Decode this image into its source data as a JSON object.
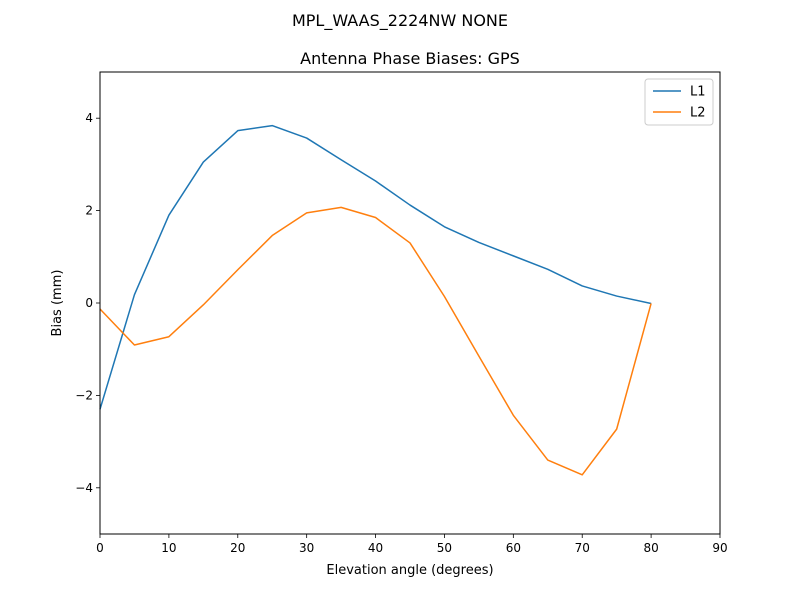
{
  "figure_title": "MPL_WAAS_2224NW NONE",
  "chart_data": {
    "type": "line",
    "title": "Antenna Phase Biases: GPS",
    "xlabel": "Elevation angle (degrees)",
    "ylabel": "Bias (mm)",
    "xlim": [
      0,
      90
    ],
    "ylim": [
      -5,
      5
    ],
    "xticks": [
      0,
      10,
      20,
      30,
      40,
      50,
      60,
      70,
      80,
      90
    ],
    "yticks": [
      -4,
      -2,
      0,
      2,
      4
    ],
    "xtick_labels": [
      "0",
      "10",
      "20",
      "30",
      "40",
      "50",
      "60",
      "70",
      "80",
      "90"
    ],
    "ytick_labels": [
      "−4",
      "−2",
      "0",
      "2",
      "4"
    ],
    "grid": false,
    "legend_position": "top-right",
    "x": [
      0,
      5,
      10,
      15,
      20,
      25,
      30,
      35,
      40,
      45,
      50,
      55,
      60,
      65,
      70,
      75,
      80
    ],
    "series": [
      {
        "name": "L1",
        "color": "#1f77b4",
        "values": [
          -2.3,
          0.18,
          1.9,
          3.05,
          3.73,
          3.84,
          3.57,
          3.1,
          2.64,
          2.12,
          1.65,
          1.31,
          1.02,
          0.73,
          0.37,
          0.15,
          -0.01
        ]
      },
      {
        "name": "L2",
        "color": "#ff7f0e",
        "values": [
          -0.13,
          -0.91,
          -0.73,
          -0.04,
          0.72,
          1.46,
          1.95,
          2.07,
          1.85,
          1.3,
          0.14,
          -1.15,
          -2.43,
          -3.4,
          -3.72,
          -2.73,
          -0.01
        ]
      }
    ]
  }
}
